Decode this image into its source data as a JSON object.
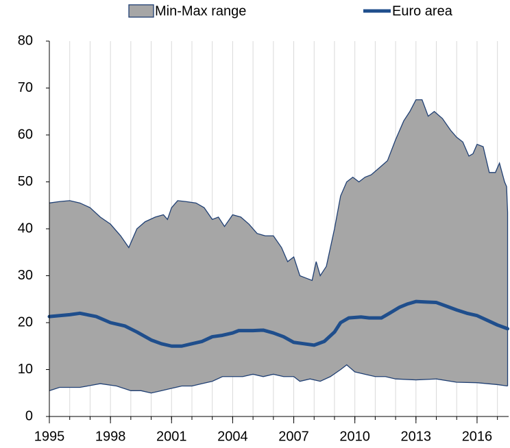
{
  "chart_data": {
    "type": "range-line",
    "xlim": [
      1995,
      2017.55
    ],
    "xticks": [
      1995,
      1998,
      2001,
      2004,
      2007,
      2010,
      2013,
      2016
    ],
    "xminor": [
      1995,
      1996,
      1997,
      1998,
      1999,
      2000,
      2001,
      2002,
      2003,
      2004,
      2005,
      2006,
      2007,
      2008,
      2009,
      2010,
      2011,
      2012,
      2013,
      2014,
      2015,
      2016,
      2017
    ],
    "ylim": [
      0,
      80
    ],
    "yticks": [
      0,
      10,
      20,
      30,
      40,
      50,
      60,
      70,
      80
    ],
    "xgrid": true,
    "legend": "top",
    "range": {
      "name": "Min-Max range",
      "color": "#a6a6a6",
      "edge": "#1f3f73",
      "upper": {
        "x": [
          1995,
          1995.5,
          1996,
          1996.5,
          1997,
          1997.5,
          1998,
          1998.5,
          1998.9,
          1999.3,
          1999.7,
          2000.2,
          2000.6,
          2000.8,
          2001.0,
          2001.3,
          2001.7,
          2002.2,
          2002.6,
          2003.0,
          2003.3,
          2003.6,
          2004.0,
          2004.4,
          2004.8,
          2005.2,
          2005.6,
          2006.0,
          2006.4,
          2006.7,
          2007.0,
          2007.3,
          2007.6,
          2007.9,
          2008.1,
          2008.3,
          2008.6,
          2009.0,
          2009.3,
          2009.6,
          2009.9,
          2010.2,
          2010.5,
          2010.8,
          2011.2,
          2011.6,
          2012.0,
          2012.4,
          2012.7,
          2013.0,
          2013.3,
          2013.6,
          2013.9,
          2014.3,
          2014.7,
          2015.0,
          2015.3,
          2015.6,
          2015.8,
          2016.0,
          2016.3,
          2016.6,
          2016.9,
          2017.1,
          2017.35,
          2017.45,
          2017.5
        ],
        "values": [
          45.5,
          45.8,
          46,
          45.5,
          44.5,
          42.5,
          41,
          38.5,
          36,
          40,
          41.5,
          42.5,
          43,
          42,
          44.5,
          46,
          45.8,
          45.5,
          44.5,
          42,
          42.5,
          40.5,
          43,
          42.5,
          41,
          39,
          38.5,
          38.5,
          36,
          33,
          34,
          30,
          29.5,
          29,
          33,
          30,
          32,
          40,
          47,
          50,
          51,
          50,
          51,
          51.5,
          53,
          54.5,
          59,
          63,
          65,
          67.5,
          67.5,
          64,
          65,
          63.5,
          61,
          59.5,
          58.5,
          55.5,
          56,
          58,
          57.5,
          52,
          52,
          54,
          50,
          49,
          43.5
        ]
      },
      "lower": {
        "x": [
          1995,
          1995.5,
          1996.5,
          1997.5,
          1998.3,
          1999.0,
          1999.5,
          2000.0,
          2000.5,
          2001.0,
          2001.5,
          2002.0,
          2002.5,
          2003.0,
          2003.5,
          2004.0,
          2004.5,
          2005.0,
          2005.5,
          2006.0,
          2006.5,
          2007.0,
          2007.3,
          2007.8,
          2008.3,
          2008.8,
          2009.3,
          2009.6,
          2010.0,
          2010.5,
          2011.0,
          2011.5,
          2012.0,
          2013.0,
          2014.0,
          2015.0,
          2016.0,
          2017.0,
          2017.5
        ],
        "values": [
          5.5,
          6.2,
          6.2,
          7,
          6.5,
          5.5,
          5.5,
          5,
          5.5,
          6,
          6.5,
          6.5,
          7,
          7.5,
          8.5,
          8.5,
          8.5,
          9,
          8.5,
          9,
          8.5,
          8.5,
          7.5,
          8,
          7.5,
          8.5,
          10,
          11,
          9.5,
          9,
          8.5,
          8.5,
          8,
          7.8,
          8,
          7.3,
          7.2,
          6.8,
          6.5
        ]
      }
    },
    "series": [
      {
        "name": "Euro area",
        "color": "#1f4e8c",
        "x": [
          1995,
          1996,
          1996.5,
          1997.3,
          1998.0,
          1998.7,
          1999.3,
          2000.0,
          2000.5,
          2001.0,
          2001.5,
          2002.0,
          2002.5,
          2003.0,
          2003.5,
          2004.0,
          2004.3,
          2005.0,
          2005.5,
          2006.0,
          2006.5,
          2007.0,
          2007.5,
          2008.0,
          2008.5,
          2009.0,
          2009.3,
          2009.7,
          2010.3,
          2010.7,
          2011.3,
          2011.7,
          2012.2,
          2012.6,
          2013.0,
          2013.5,
          2014.0,
          2014.5,
          2015.0,
          2015.5,
          2016.0,
          2016.5,
          2017.0,
          2017.5
        ],
        "values": [
          21.3,
          21.7,
          22,
          21.3,
          20,
          19.3,
          18,
          16.3,
          15.5,
          15,
          15,
          15.5,
          16,
          17,
          17.3,
          17.8,
          18.3,
          18.3,
          18.4,
          17.8,
          17,
          15.8,
          15.5,
          15.2,
          16,
          18,
          20,
          21,
          21.2,
          21,
          21,
          22,
          23.3,
          24,
          24.5,
          24.4,
          24.3,
          23.5,
          22.7,
          22,
          21.5,
          20.5,
          19.5,
          18.7
        ]
      }
    ]
  }
}
